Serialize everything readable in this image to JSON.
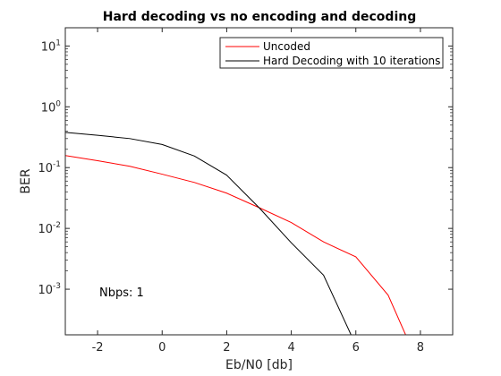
{
  "chart_data": {
    "type": "line",
    "title": "Hard decoding vs no encoding and decoding",
    "xlabel": "Eb/N0 [db]",
    "ylabel": "BER",
    "xlim": [
      -3,
      9
    ],
    "ylim_log10": [
      -3.75,
      1.3
    ],
    "y_scale": "log",
    "x_ticks": [
      -2,
      0,
      2,
      4,
      6,
      8
    ],
    "x_tick_labels": [
      "-2",
      "0",
      "2",
      "4",
      "6",
      "8"
    ],
    "y_tick_exponents": [
      -3,
      -2,
      -1,
      0,
      1
    ],
    "y_tick_base": "10",
    "grid": false,
    "legend_position": "top-right",
    "annotation": "Nbps: 1",
    "series": [
      {
        "name": "Uncoded",
        "color": "#ff0000",
        "x": [
          -3,
          -2,
          -1,
          0,
          1,
          2,
          3,
          4,
          5,
          6,
          7,
          8
        ],
        "y": [
          0.158,
          0.13,
          0.105,
          0.078,
          0.057,
          0.038,
          0.022,
          0.0125,
          0.006,
          0.0034,
          0.0008,
          5e-05
        ]
      },
      {
        "name": "Hard Decoding with 10 iterations",
        "color": "#000000",
        "x": [
          -3,
          -2,
          -1,
          0,
          1,
          2,
          3,
          4,
          5,
          6
        ],
        "y": [
          0.38,
          0.34,
          0.3,
          0.24,
          0.155,
          0.075,
          0.022,
          0.0058,
          0.0017,
          0.00012
        ]
      }
    ]
  }
}
